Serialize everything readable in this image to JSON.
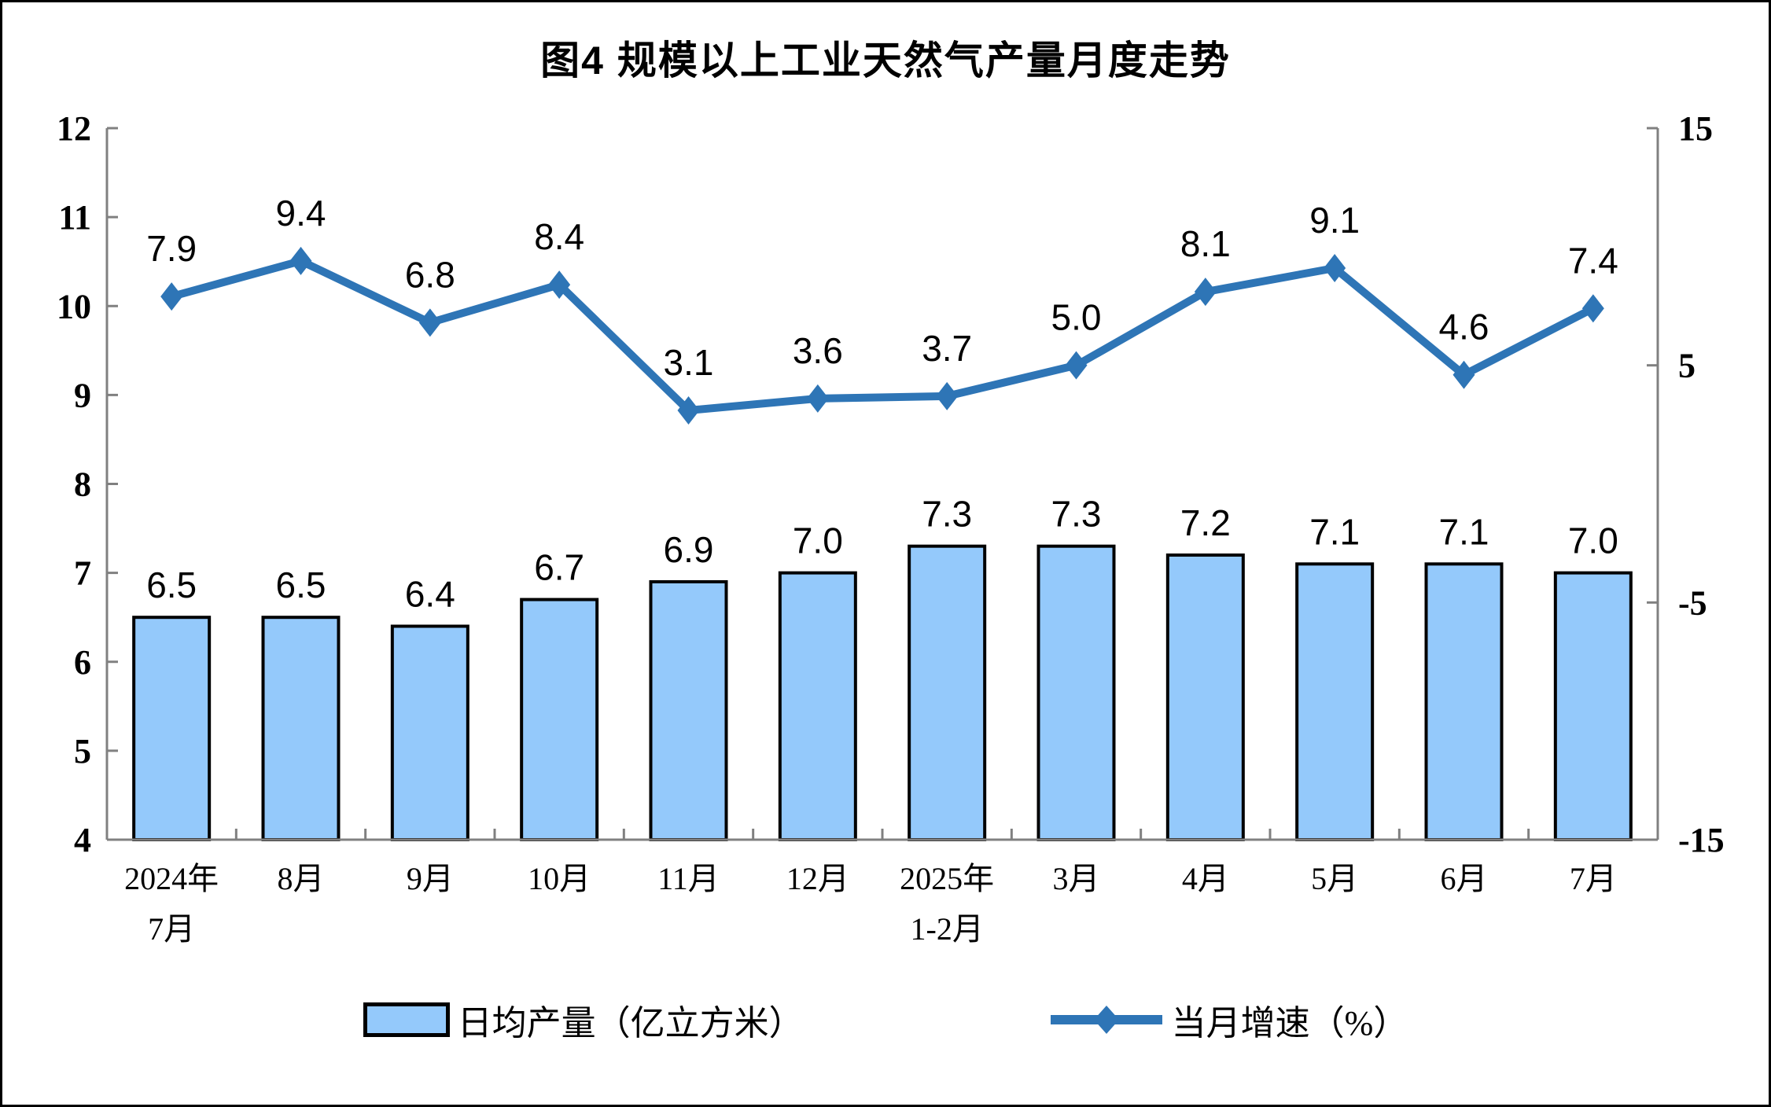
{
  "title": "图4 规模以上工业天然气产量月度走势",
  "chart_data": {
    "type": "bar",
    "subtype": "combo-bar-line-dual-axis",
    "title": "图4 规模以上工业天然气产量月度走势",
    "categories": [
      "2024年7月",
      "8月",
      "9月",
      "10月",
      "11月",
      "12月",
      "2025年1-2月",
      "3月",
      "4月",
      "5月",
      "6月",
      "7月"
    ],
    "category_label_lines": [
      [
        "2024年",
        "7月"
      ],
      [
        "8月"
      ],
      [
        "9月"
      ],
      [
        "10月"
      ],
      [
        "11月"
      ],
      [
        "12月"
      ],
      [
        "2025年",
        "1-2月"
      ],
      [
        "3月"
      ],
      [
        "4月"
      ],
      [
        "5月"
      ],
      [
        "6月"
      ],
      [
        "7月"
      ]
    ],
    "series": [
      {
        "name": "日均产量（亿立方米）",
        "type": "bar",
        "axis": "left",
        "color": "#94C9FB",
        "border_color": "#000000",
        "values": [
          6.5,
          6.5,
          6.4,
          6.7,
          6.9,
          7.0,
          7.3,
          7.3,
          7.2,
          7.1,
          7.1,
          7.0
        ]
      },
      {
        "name": "当月增速（%）",
        "type": "line",
        "axis": "right",
        "color": "#2E75B6",
        "marker": "diamond",
        "values": [
          7.9,
          9.4,
          6.8,
          8.4,
          3.1,
          3.6,
          3.7,
          5.0,
          8.1,
          9.1,
          4.6,
          7.4
        ]
      }
    ],
    "left_axis": {
      "min": 4,
      "max": 12,
      "ticks": [
        4,
        5,
        6,
        7,
        8,
        9,
        10,
        11,
        12
      ]
    },
    "right_axis": {
      "min": -15,
      "max": 15,
      "ticks": [
        -15,
        -5,
        5,
        15
      ]
    },
    "grid": false,
    "legend_position": "bottom",
    "axis_color": "#808080",
    "text_color": "#000000",
    "data_labels": true
  },
  "legend": {
    "items": [
      {
        "label": "日均产量（亿立方米）",
        "type": "bar"
      },
      {
        "label": "当月增速（%）",
        "type": "line"
      }
    ]
  }
}
